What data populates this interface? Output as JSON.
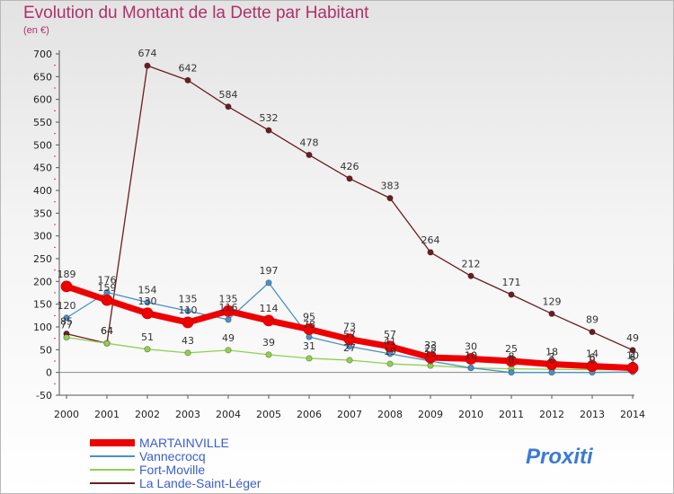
{
  "title": "Evolution du Montant de la Dette par Habitant",
  "subtitle": "(en €)",
  "logo": "Proxiti",
  "chart_data": {
    "type": "line",
    "title": "Evolution du Montant de la Dette par Habitant",
    "subtitle": "(en €)",
    "xlabel": "",
    "ylabel": "",
    "ylim": [
      -50,
      700
    ],
    "ytick_step": 50,
    "grid": false,
    "legend_position": "bottom-left",
    "x": [
      2000,
      2001,
      2002,
      2003,
      2004,
      2005,
      2006,
      2007,
      2008,
      2009,
      2010,
      2011,
      2012,
      2013,
      2014
    ],
    "series": [
      {
        "name": "La Lande-Saint-Léger",
        "color": "#6b1c22",
        "values": [
          85,
          64,
          674,
          642,
          584,
          532,
          478,
          426,
          383,
          264,
          212,
          171,
          129,
          89,
          49
        ],
        "labels": [
          "85",
          "64",
          "674",
          "642",
          "584",
          "532",
          "478",
          "426",
          "383",
          "264",
          "212",
          "171",
          "129",
          "89",
          "49"
        ]
      },
      {
        "name": "Fort-Moville",
        "color": "#8fd14f",
        "values": [
          77,
          64,
          51,
          43,
          49,
          39,
          31,
          27,
          19,
          15,
          10,
          8,
          7,
          6,
          6
        ],
        "labels": [
          "77",
          "64",
          "51",
          "43",
          "49",
          "39",
          "31",
          "27",
          "19",
          "15",
          "10",
          "8",
          "7",
          "6",
          "6"
        ]
      },
      {
        "name": "Vannecrocq",
        "color": "#4a90c8",
        "values": [
          120,
          176,
          154,
          135,
          116,
          197,
          78,
          57,
          41,
          25,
          10,
          0,
          0,
          0,
          1
        ],
        "labels": [
          "120",
          "176",
          "154",
          "135",
          "116",
          "197",
          "78",
          "57",
          "41",
          "25",
          "10",
          "0",
          "0",
          "0",
          "1"
        ]
      },
      {
        "name": "MARTAINVILLE",
        "color": "#ee0000",
        "values": [
          189,
          159,
          130,
          110,
          135,
          114,
          95,
          73,
          57,
          33,
          30,
          25,
          18,
          14,
          10
        ],
        "labels": [
          "189",
          "159",
          "130",
          "110",
          "135",
          "114",
          "95",
          "73",
          "57",
          "33",
          "30",
          "25",
          "18",
          "14",
          "10"
        ]
      }
    ],
    "legend": [
      "MARTAINVILLE",
      "Vannecrocq",
      "Fort-Moville",
      "La Lande-Saint-Léger"
    ]
  }
}
